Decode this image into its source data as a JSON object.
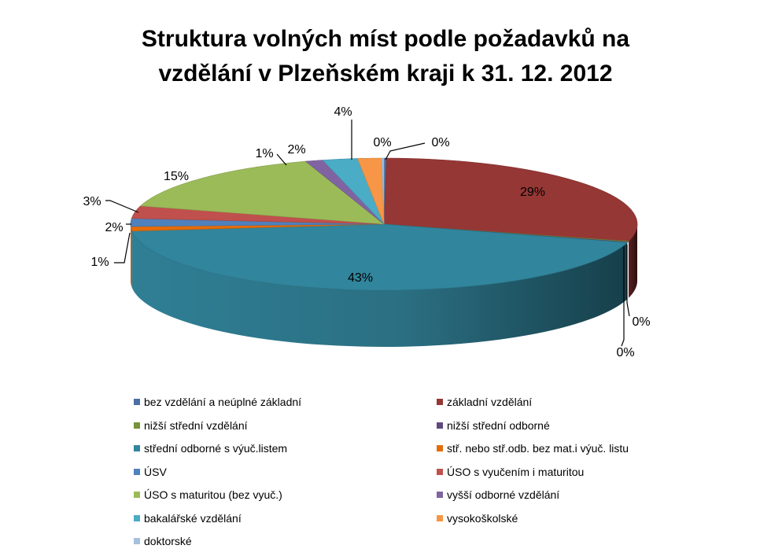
{
  "chart_data": {
    "type": "pie",
    "title_line1": "Struktura volných míst podle požadavků na",
    "title_line2": "vzdělání v Plzeňském kraji k 31. 12. 2012",
    "slices": [
      {
        "name": "bez vzdělání a neúplné základní",
        "value": 0.3,
        "label": "0%",
        "color": "#4a6fa5"
      },
      {
        "name": "základní vzdělání",
        "value": 29,
        "label": "29%",
        "color": "#953735"
      },
      {
        "name": "nižší střední vzdělání",
        "value": 0.2,
        "label": "0%",
        "color": "#77933c"
      },
      {
        "name": "nižší střední odborné",
        "value": 0.1,
        "label": "0%",
        "color": "#604a7b"
      },
      {
        "name": "střední odborné s výuč.listem",
        "value": 43,
        "label": "43%",
        "color": "#31859c"
      },
      {
        "name": "stř. nebo stř.odb. bez mat.i výuč. listu",
        "value": 1,
        "label": "1%",
        "color": "#e46c0a"
      },
      {
        "name": "ÚSV",
        "value": 2,
        "label": "2%",
        "color": "#4f81bd"
      },
      {
        "name": "ÚSO s vyučením i maturitou",
        "value": 3,
        "label": "3%",
        "color": "#c0504d"
      },
      {
        "name": "ÚSO s maturitou (bez vyuč.)",
        "value": 15,
        "label": "15%",
        "color": "#9bbb59"
      },
      {
        "name": "vyšší odborné vzdělání",
        "value": 1,
        "label": "1%",
        "color": "#8064a2"
      },
      {
        "name": "bakalářské vzdělání",
        "value": 2,
        "label": "2%",
        "color": "#4bacc6"
      },
      {
        "name": "vysokoškolské",
        "value": 4,
        "label": "4%",
        "color": "#f79646"
      },
      {
        "name": "doktorské",
        "value": 0.3,
        "label": "0%",
        "color": "#a7c0de"
      }
    ]
  }
}
